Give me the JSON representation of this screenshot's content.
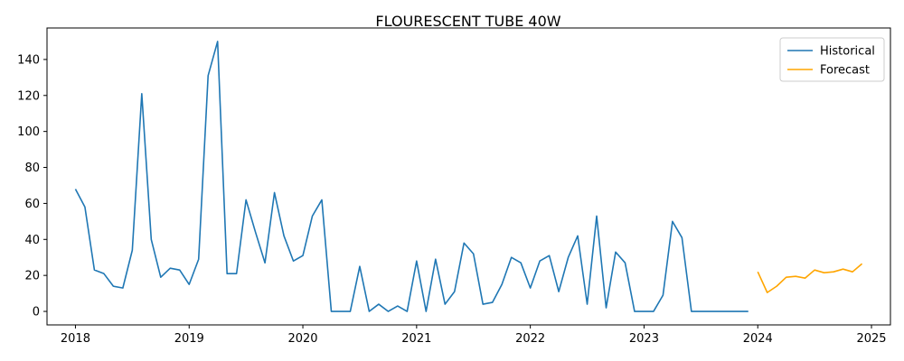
{
  "chart_data": {
    "type": "line",
    "title": "FLOURESCENT TUBE 40W",
    "xlabel": "",
    "ylabel": "",
    "x_ticks": [
      "2018",
      "2019",
      "2020",
      "2021",
      "2022",
      "2023",
      "2024",
      "2025"
    ],
    "y_ticks": [
      "0",
      "20",
      "40",
      "60",
      "80",
      "100",
      "120",
      "140"
    ],
    "xlim": [
      "2017-10",
      "2025-03"
    ],
    "ylim": [
      -7.5,
      157.5
    ],
    "grid": false,
    "legend": {
      "placement": "top-right"
    },
    "series": [
      {
        "name": "Historical",
        "color": "#1f77b4",
        "x": [
          "2018-01",
          "2018-02",
          "2018-03",
          "2018-04",
          "2018-05",
          "2018-06",
          "2018-07",
          "2018-08",
          "2018-09",
          "2018-10",
          "2018-11",
          "2018-12",
          "2019-01",
          "2019-02",
          "2019-03",
          "2019-04",
          "2019-05",
          "2019-06",
          "2019-07",
          "2019-08",
          "2019-09",
          "2019-10",
          "2019-11",
          "2019-12",
          "2020-01",
          "2020-02",
          "2020-03",
          "2020-04",
          "2020-05",
          "2020-06",
          "2020-07",
          "2020-08",
          "2020-09",
          "2020-10",
          "2020-11",
          "2020-12",
          "2021-01",
          "2021-02",
          "2021-03",
          "2021-04",
          "2021-05",
          "2021-06",
          "2021-07",
          "2021-08",
          "2021-09",
          "2021-10",
          "2021-11",
          "2021-12",
          "2022-01",
          "2022-02",
          "2022-03",
          "2022-04",
          "2022-05",
          "2022-06",
          "2022-07",
          "2022-08",
          "2022-09",
          "2022-10",
          "2022-11",
          "2022-12",
          "2023-01",
          "2023-02",
          "2023-03",
          "2023-04",
          "2023-05",
          "2023-06",
          "2023-07",
          "2023-08",
          "2023-09",
          "2023-10",
          "2023-11",
          "2023-12"
        ],
        "values": [
          68,
          58,
          23,
          21,
          14,
          13,
          34,
          121,
          40,
          19,
          24,
          23,
          15,
          29,
          131,
          150,
          21,
          21,
          62,
          44,
          27,
          66,
          42,
          28,
          31,
          53,
          62,
          0,
          0,
          0,
          25,
          0,
          4,
          0,
          3,
          0,
          28,
          0,
          29,
          4,
          11,
          38,
          32,
          4,
          5,
          15,
          30,
          27,
          13,
          28,
          31,
          11,
          30,
          42,
          4,
          53,
          2,
          33,
          27,
          0,
          0,
          0,
          9,
          50,
          41,
          0,
          0,
          0,
          0,
          0,
          0,
          0
        ]
      },
      {
        "name": "Forecast",
        "color": "#ffa500",
        "x": [
          "2024-01",
          "2024-02",
          "2024-03",
          "2024-04",
          "2024-05",
          "2024-06",
          "2024-07",
          "2024-08",
          "2024-09",
          "2024-10",
          "2024-11",
          "2024-12"
        ],
        "values": [
          22,
          10.5,
          14,
          19,
          19.5,
          18.5,
          23,
          21.5,
          22,
          23.5,
          22,
          26.5
        ]
      }
    ]
  }
}
